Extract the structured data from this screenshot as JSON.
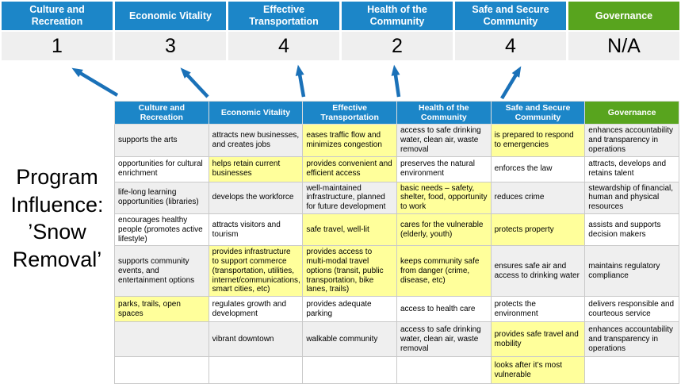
{
  "colors": {
    "header_blue": "#1c86c8",
    "governance_green": "#58a41e",
    "highlight_yellow": "#ffff9b",
    "stripe_gray": "#efefef",
    "arrow_blue": "#1a71b8"
  },
  "program_label": {
    "lines": [
      "Program",
      "Influence:",
      "’Snow",
      "Removal’"
    ]
  },
  "summary": {
    "columns": [
      {
        "label": "Culture and Recreation",
        "score": "1",
        "theme": "blue"
      },
      {
        "label": "Economic Vitality",
        "score": "3",
        "theme": "blue"
      },
      {
        "label": "Effective Transportation",
        "score": "4",
        "theme": "blue"
      },
      {
        "label": "Health of the Community",
        "score": "2",
        "theme": "blue"
      },
      {
        "label": "Safe and Secure Community",
        "score": "4",
        "theme": "blue"
      },
      {
        "label": "Governance",
        "score": "N/A",
        "theme": "green"
      }
    ]
  },
  "matrix": {
    "headers": [
      {
        "label": "Culture and Recreation",
        "theme": "blue"
      },
      {
        "label": "Economic Vitality",
        "theme": "blue"
      },
      {
        "label": "Effective Transportation",
        "theme": "blue"
      },
      {
        "label": "Health of the Community",
        "theme": "blue"
      },
      {
        "label": "Safe and Secure Community",
        "theme": "blue"
      },
      {
        "label": "Governance",
        "theme": "green"
      }
    ],
    "rows": [
      [
        {
          "t": "supports the arts",
          "h": false
        },
        {
          "t": "attracts new businesses, and creates jobs",
          "h": false
        },
        {
          "t": "eases traffic flow and minimizes congestion",
          "h": true
        },
        {
          "t": "access to safe drinking water, clean air, waste removal",
          "h": false
        },
        {
          "t": "is prepared to respond to emergencies",
          "h": true
        },
        {
          "t": "enhances accountability and transparency in operations",
          "h": false
        }
      ],
      [
        {
          "t": "opportunities for cultural enrichment",
          "h": false
        },
        {
          "t": "helps retain current businesses",
          "h": true
        },
        {
          "t": "provides convenient and efficient access",
          "h": true
        },
        {
          "t": "preserves the natural environment",
          "h": false
        },
        {
          "t": "enforces the law",
          "h": false
        },
        {
          "t": "attracts, develops and retains talent",
          "h": false
        }
      ],
      [
        {
          "t": "life-long learning opportunities (libraries)",
          "h": false
        },
        {
          "t": "develops the workforce",
          "h": false
        },
        {
          "t": "well-maintained infrastructure, planned for future development",
          "h": false
        },
        {
          "t": "basic needs – safety, shelter, food, opportunity to work",
          "h": true
        },
        {
          "t": "reduces crime",
          "h": false
        },
        {
          "t": "stewardship of financial, human and physical resources",
          "h": false
        }
      ],
      [
        {
          "t": "encourages healthy people (promotes active lifestyle)",
          "h": false
        },
        {
          "t": "attracts visitors and tourism",
          "h": false
        },
        {
          "t": "safe travel, well-lit",
          "h": true
        },
        {
          "t": "cares for the vulnerable (elderly, youth)",
          "h": true
        },
        {
          "t": "protects property",
          "h": true
        },
        {
          "t": "assists and supports decision makers",
          "h": false
        }
      ],
      [
        {
          "t": "supports community events, and entertainment options",
          "h": false
        },
        {
          "t": "provides infrastructure to support commerce (transportation, utilities, internet/communications, smart cities, etc)",
          "h": true
        },
        {
          "t": "provides access to multi-modal travel options (transit, public transportation, bike lanes, trails)",
          "h": true
        },
        {
          "t": "keeps community safe from danger (crime, disease, etc)",
          "h": true
        },
        {
          "t": "ensures safe air and access to drinking water",
          "h": false
        },
        {
          "t": "maintains regulatory compliance",
          "h": false
        }
      ],
      [
        {
          "t": "parks, trails, open spaces",
          "h": true
        },
        {
          "t": "regulates growth and development",
          "h": false
        },
        {
          "t": "provides adequate parking",
          "h": false
        },
        {
          "t": "access to health care",
          "h": false
        },
        {
          "t": "protects the environment",
          "h": false
        },
        {
          "t": "delivers responsible and courteous service",
          "h": false
        }
      ],
      [
        {
          "t": "",
          "h": false
        },
        {
          "t": "vibrant downtown",
          "h": false
        },
        {
          "t": "walkable community",
          "h": false
        },
        {
          "t": "access to safe drinking water, clean air, waste removal",
          "h": false
        },
        {
          "t": "provides safe travel and mobility",
          "h": true
        },
        {
          "t": "enhances accountability and transparency in operations",
          "h": false
        }
      ],
      [
        {
          "t": "",
          "h": false
        },
        {
          "t": "",
          "h": false
        },
        {
          "t": "",
          "h": false
        },
        {
          "t": "",
          "h": false
        },
        {
          "t": "looks after it’s most vulnerable",
          "h": true
        },
        {
          "t": "",
          "h": false
        }
      ]
    ]
  }
}
